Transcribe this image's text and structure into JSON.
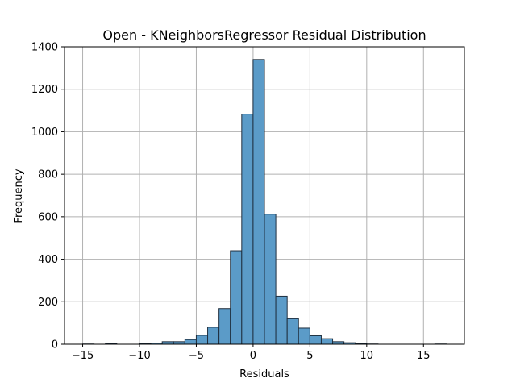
{
  "chart_data": {
    "type": "bar",
    "title": "Open - KNeighborsRegressor Residual Distribution",
    "xlabel": "Residuals",
    "ylabel": "Frequency",
    "xlim": [
      -16.6,
      18.6
    ],
    "ylim": [
      0,
      1400
    ],
    "xticks": [
      -15,
      -10,
      -5,
      0,
      5,
      10,
      15
    ],
    "xtick_labels": [
      "−15",
      "−10",
      "−5",
      "0",
      "5",
      "10",
      "15"
    ],
    "yticks": [
      0,
      200,
      400,
      600,
      800,
      1000,
      1200,
      1400
    ],
    "ytick_labels": [
      "0",
      "200",
      "400",
      "600",
      "800",
      "1000",
      "1200",
      "1400"
    ],
    "grid": true,
    "bin_edges": [
      -15.0,
      -14.0,
      -13.0,
      -12.0,
      -11.0,
      -10.0,
      -9.0,
      -8.0,
      -7.0,
      -6.0,
      -5.0,
      -4.0,
      -3.0,
      -2.0,
      -1.0,
      0.0,
      1.0,
      2.0,
      3.0,
      4.0,
      5.0,
      6.0,
      7.0,
      8.0,
      9.0,
      10.0,
      11.0,
      12.0,
      13.0,
      14.0,
      15.0,
      16.0,
      17.0
    ],
    "values": [
      1,
      0,
      3,
      0,
      0,
      3,
      5,
      12,
      12,
      22,
      42,
      80,
      168,
      440,
      1083,
      1340,
      612,
      226,
      120,
      76,
      40,
      26,
      12,
      7,
      3,
      1,
      0,
      0,
      0,
      0,
      0,
      1
    ],
    "bar_color": "#5b9bc8",
    "edge_color": "#1f2f3f",
    "grid_color": "#b0b0b0"
  }
}
